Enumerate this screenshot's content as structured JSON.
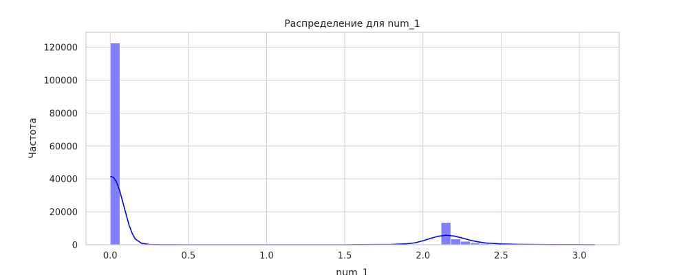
{
  "chart_data": {
    "type": "bar",
    "title": "Распределение для num_1",
    "xlabel": "num_1",
    "ylabel": "Частота",
    "xlim": [
      -0.155,
      3.255
    ],
    "ylim": [
      0,
      129000
    ],
    "grid": true,
    "legend": "none",
    "x_ticks": [
      0.0,
      0.5,
      1.0,
      1.5,
      2.0,
      2.5,
      3.0
    ],
    "x_tick_labels": [
      "0.0",
      "0.5",
      "1.0",
      "1.5",
      "2.0",
      "2.5",
      "3.0"
    ],
    "y_ticks": [
      0,
      20000,
      40000,
      60000,
      80000,
      100000,
      120000
    ],
    "y_tick_labels": [
      "0",
      "20000",
      "40000",
      "60000",
      "80000",
      "100000",
      "120000"
    ],
    "bin_width": 0.0622,
    "histogram": {
      "bins": [
        {
          "x": 0.0,
          "value": 122500
        },
        {
          "x": 2.116,
          "value": 13500
        },
        {
          "x": 2.178,
          "value": 3500
        },
        {
          "x": 2.24,
          "value": 2100
        },
        {
          "x": 2.302,
          "value": 1200
        },
        {
          "x": 2.364,
          "value": 700
        },
        {
          "x": 2.426,
          "value": 450
        },
        {
          "x": 2.488,
          "value": 300
        },
        {
          "x": 2.55,
          "value": 200
        },
        {
          "x": 2.612,
          "value": 150
        },
        {
          "x": 2.674,
          "value": 110
        },
        {
          "x": 2.736,
          "value": 80
        },
        {
          "x": 2.798,
          "value": 60
        },
        {
          "x": 2.86,
          "value": 45
        },
        {
          "x": 2.922,
          "value": 35
        },
        {
          "x": 2.984,
          "value": 25
        },
        {
          "x": 3.046,
          "value": 20
        }
      ]
    },
    "kde": {
      "x": [
        0.0,
        0.02,
        0.04,
        0.06,
        0.08,
        0.1,
        0.12,
        0.14,
        0.16,
        0.2,
        0.25,
        0.3,
        0.5,
        1.0,
        1.5,
        1.8,
        1.9,
        1.95,
        2.0,
        2.05,
        2.1,
        2.15,
        2.2,
        2.25,
        2.3,
        2.35,
        2.4,
        2.5,
        2.6,
        2.8,
        3.1
      ],
      "y": [
        41500,
        41000,
        38000,
        33000,
        26000,
        19000,
        12000,
        7000,
        3500,
        900,
        150,
        30,
        0,
        0,
        0,
        200,
        600,
        1200,
        2400,
        3900,
        5200,
        5800,
        5300,
        4100,
        2800,
        1800,
        1100,
        500,
        250,
        90,
        20
      ]
    },
    "colors": {
      "bars": "#7f7fff",
      "bar_edge": "#ffffff",
      "kde": "#0000ff",
      "grid": "#d0d0d0",
      "frame": "#cccccc"
    }
  }
}
